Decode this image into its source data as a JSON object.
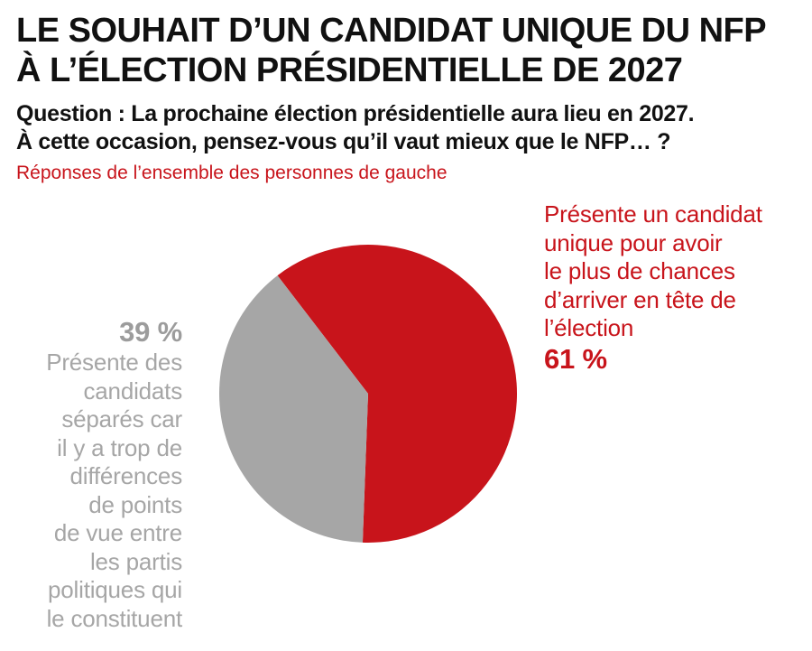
{
  "header": {
    "title_lines": [
      "LE SOUHAIT D’UN CANDIDAT UNIQUE DU NFP",
      "À L’ÉLECTION PRÉSIDENTIELLE DE 2027"
    ],
    "question_lines": [
      "Question : La prochaine élection présidentielle aura lieu en 2027.",
      "À cette occasion, pensez-vous qu’il vaut mieux que le NFP… ?"
    ],
    "subtitle": "Réponses de l’ensemble des personnes de gauche"
  },
  "chart_data": {
    "type": "pie",
    "title": "LE SOUHAIT D’UN CANDIDAT UNIQUE DU NFP À L’ÉLECTION PRÉSIDENTIELLE DE 2027",
    "slices": [
      {
        "label_lines": [
          "Présente un candidat",
          "unique pour avoir",
          "le plus de chances",
          "d’arriver en tête de",
          "l’élection"
        ],
        "value": 61,
        "value_label": "61 %",
        "color": "#c8141b"
      },
      {
        "label_lines": [
          "Présente des",
          "candidats",
          "séparés car",
          "il y a trop de",
          "différences",
          "de points",
          "de vue entre",
          "les partis",
          "politiques qui",
          "le constituent"
        ],
        "value": 39,
        "value_label": "39 %",
        "color": "#a6a6a6"
      }
    ]
  }
}
